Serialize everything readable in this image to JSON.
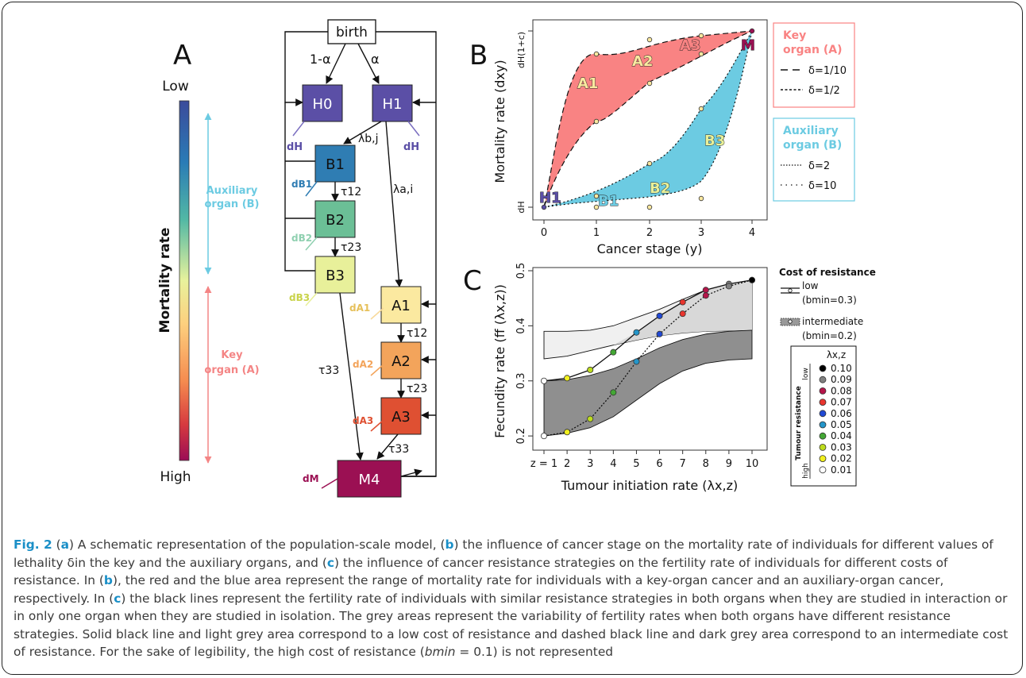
{
  "panelA": {
    "letter": "A",
    "scale_low": "Low",
    "scale_high": "High",
    "scale_title": "Mortality rate",
    "aux_label_1": "Auxiliary",
    "aux_label_2": "organ (B)",
    "key_label_1": "Key",
    "key_label_2": "organ (A)",
    "birth": "birth",
    "one_minus_alpha": "1-α",
    "alpha": "α",
    "lambda_b": "λb,j",
    "lambda_a": "λa,i",
    "tau12": "τ12",
    "tau23": "τ23",
    "tau33": "τ33",
    "boxes": {
      "H0": "H0",
      "H1": "H1",
      "B1": "B1",
      "B2": "B2",
      "B3": "B3",
      "A1": "A1",
      "A2": "A2",
      "A3": "A3",
      "M4": "M4"
    },
    "rates": {
      "dH": "dH",
      "dB1": "dB1",
      "dB2": "dB2",
      "dB3": "dB3",
      "dA1": "dA1",
      "dA2": "dA2",
      "dA3": "dA3",
      "dM": "dM"
    },
    "colors": {
      "H": "#5b4fa6",
      "B1": "#2f7db3",
      "B2": "#6bbf96",
      "B3": "#e8f09a",
      "A1": "#fbe9a0",
      "A2": "#f3a45b",
      "A3": "#df5032",
      "M4": "#9b1053"
    }
  },
  "panelB": {
    "letter": "B",
    "ylabel": "Mortality rate (dxy)",
    "xlabel": "Cancer stage (y)",
    "ytick_top": "dH(1+c)",
    "ytick_bottom": "dH",
    "xticks": [
      "0",
      "1",
      "2",
      "3",
      "4"
    ],
    "region_labels": {
      "H1": "H1",
      "B1": "B1",
      "B2": "B2",
      "B3": "B3",
      "A1": "A1",
      "A2": "A2",
      "A3": "A3",
      "M": "M"
    },
    "legend_key_title_1": "Key",
    "legend_key_title_2": "organ (A)",
    "legend_key_items": [
      "δ=1/10",
      "δ=1/2"
    ],
    "legend_aux_title_1": "Auxiliary",
    "legend_aux_title_2": "organ (B)",
    "legend_aux_items": [
      "δ=2",
      "δ=10"
    ],
    "key_color": "#f98383",
    "aux_color": "#6ccbe2"
  },
  "panelC": {
    "letter": "C",
    "ylabel": "Fecundity rate (ff (λx,z))",
    "xlabel": "Tumour initiation rate (λx,z)",
    "xticks": [
      "z = 1",
      "2",
      "3",
      "4",
      "5",
      "6",
      "7",
      "8",
      "9",
      "10"
    ],
    "yticks": [
      "0.2",
      "0.3",
      "0.4",
      "0.5"
    ],
    "cost_title": "Cost of resistance",
    "cost_low": "low",
    "cost_low_b": "(bmin=0.3)",
    "cost_inter": "intermediate",
    "cost_inter_b": "(bmin=0.2)",
    "lambda_title": "λx,z",
    "resistance_label": "Tumour resistance",
    "res_low": "low",
    "res_high": "high",
    "lambda_values": [
      "0.10",
      "0.09",
      "0.08",
      "0.07",
      "0.06",
      "0.05",
      "0.04",
      "0.03",
      "0.02",
      "0.01"
    ],
    "point_colors": [
      "#000000",
      "#808080",
      "#b5164a",
      "#e8352e",
      "#2149d4",
      "#2395c9",
      "#43a734",
      "#bddc1e",
      "#f1f01e",
      "#ffffff"
    ]
  },
  "chart_data": {
    "type": "line",
    "x": [
      1,
      2,
      3,
      4,
      5,
      6,
      7,
      8,
      9,
      10
    ],
    "xlabel": "Tumour initiation rate (λx,z)",
    "ylabel": "Fecundity rate (ff (λx,z))",
    "ylim": [
      0.18,
      0.5
    ],
    "series": [
      {
        "name": "low",
        "values": [
          0.3,
          0.305,
          0.32,
          0.352,
          0.388,
          0.418,
          0.443,
          0.465,
          0.476,
          0.483
        ]
      },
      {
        "name": "intermediate",
        "values": [
          0.2,
          0.207,
          0.231,
          0.279,
          0.335,
          0.385,
          0.422,
          0.455,
          0.472,
          0.483
        ]
      }
    ]
  },
  "caption": {
    "fig": "Fig. 2",
    "a": "a",
    "b": "b",
    "c": "c",
    "t1": " (",
    "t2": ") A schematic representation of the population-scale model, (",
    "t3": ") the influence of cancer stage on the mortality rate of individuals for different values of lethality δin the key and the auxiliary organs, and (",
    "t4": ") the influence of cancer resistance strategies on the fertility rate of individuals for different costs of resistance. In (",
    "t5": "), the red and the blue area represent the range of mortality rate for individuals with a key-organ cancer and an auxiliary-organ cancer, respectively. In (",
    "t6": ") the black lines represent the fertility rate of individuals with similar resistance strategies in both organs when they are studied in interaction or in only one organ when they are studied in isolation. The grey areas represent the variability of fertility rates when both organs have different resistance strategies. Solid black line and light grey area correspond to a low cost of resistance and dashed black line and dark grey area correspond to an intermediate cost of resistance. For the sake of legibility, the high cost of resistance (",
    "bmin": "bmin",
    "t7": " = 0.1) is not represented"
  }
}
